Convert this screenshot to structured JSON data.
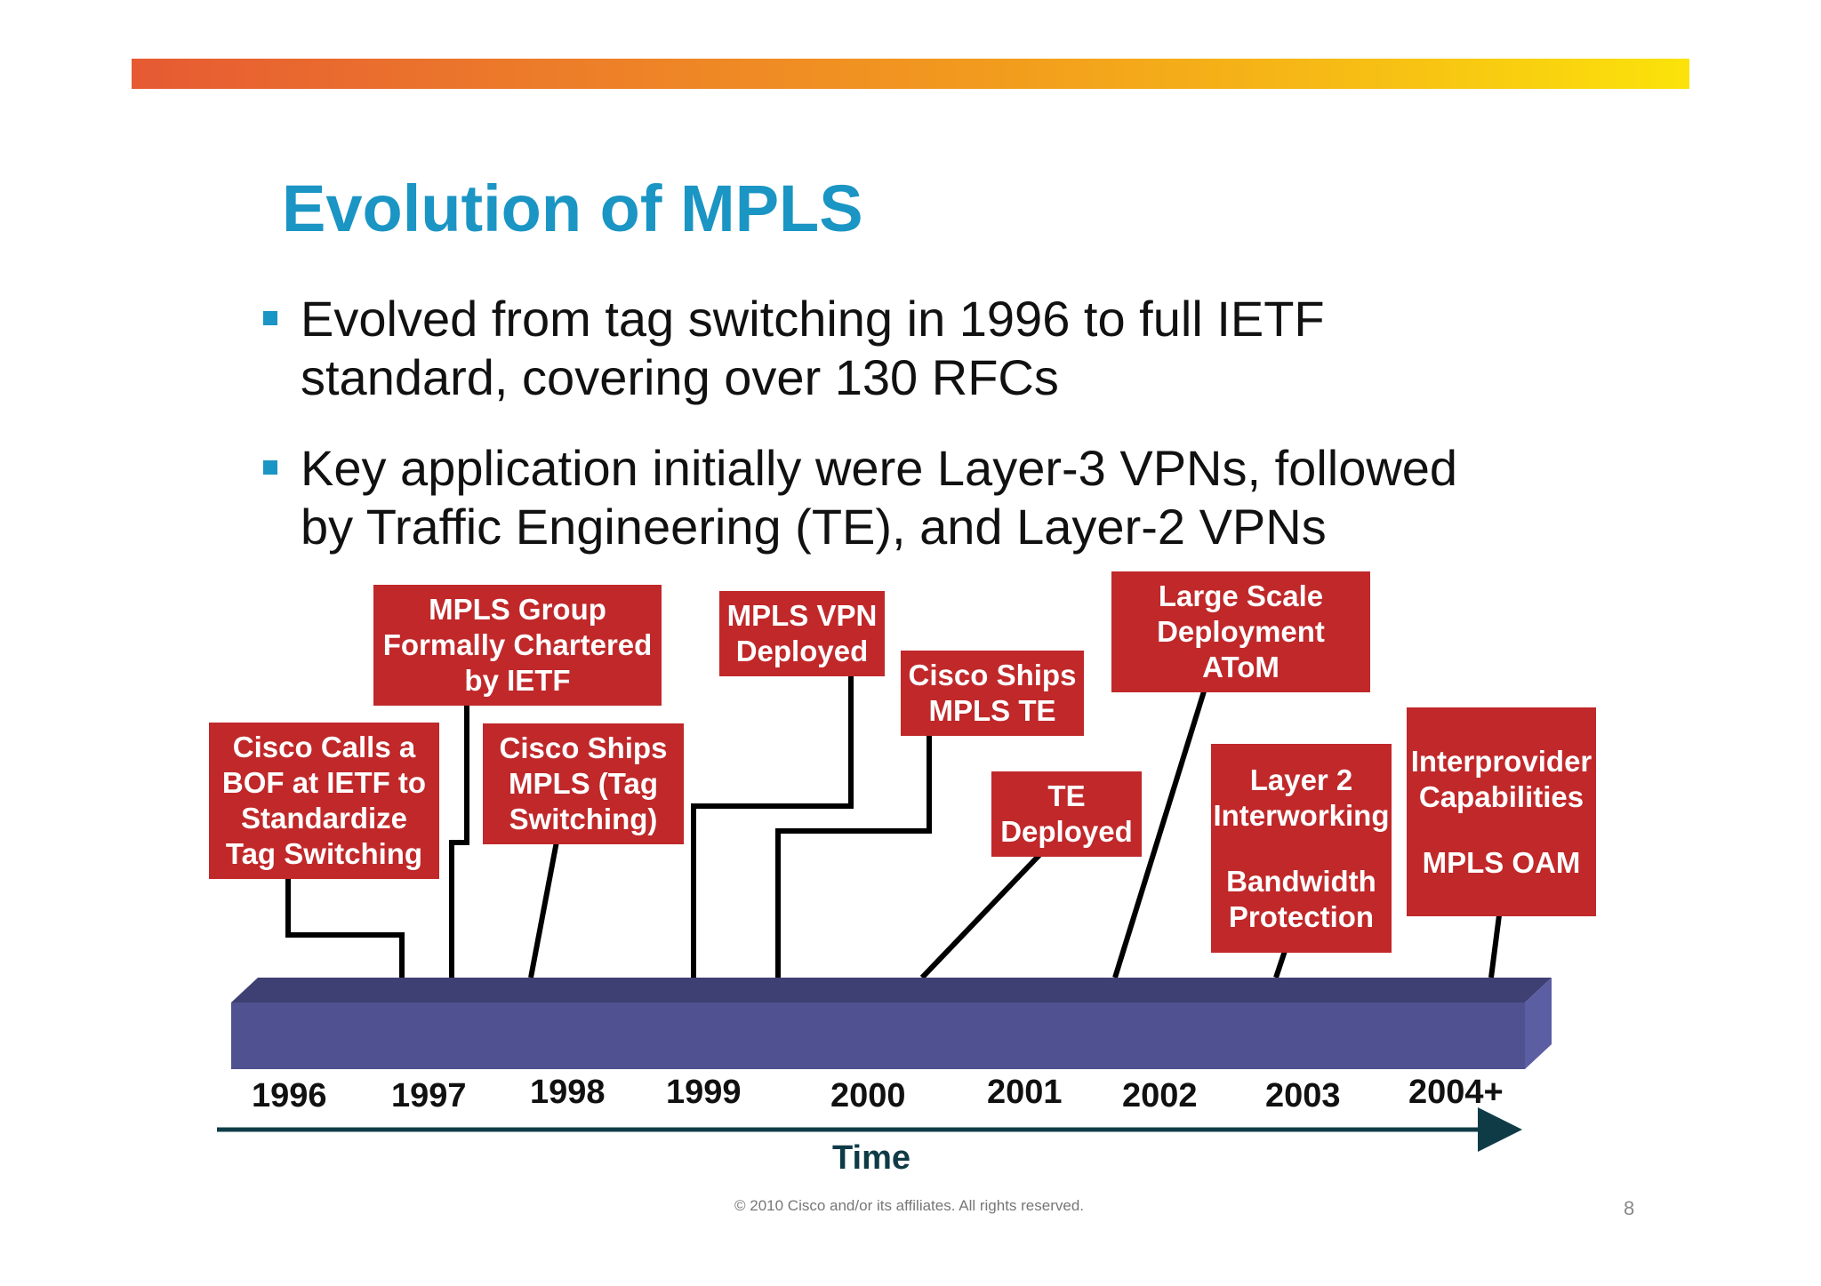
{
  "slide": {
    "title": "Evolution of MPLS",
    "bullets": [
      {
        "lines": [
          "Evolved from tag switching in 1996 to full IETF",
          "standard, covering over 130 RFCs"
        ]
      },
      {
        "lines": [
          "Key application initially were Layer-3 VPNs, followed",
          "by Traffic Engineering (TE), and Layer-2 VPNs"
        ]
      }
    ],
    "footer": "© 2010 Cisco and/or its affiliates. All rights reserved.",
    "page_number": "8"
  },
  "timeline": {
    "years": [
      "1996",
      "1997",
      "1998",
      "1999",
      "2000",
      "2001",
      "2002",
      "2003",
      "2004+"
    ],
    "axis_label": "Time",
    "colors": {
      "event_box": "#c0282a",
      "bar_front": "#4f5190",
      "bar_top": "#3e3f72",
      "bar_side": "#5c5ea3",
      "axis": "#0f3b46",
      "title": "#1a95c4"
    },
    "events": [
      {
        "lines": [
          "Cisco Calls a",
          "BOF at IETF to",
          "Standardize",
          "Tag Switching"
        ]
      },
      {
        "lines": [
          "MPLS Group",
          "Formally Chartered",
          "by IETF"
        ]
      },
      {
        "lines": [
          "Cisco Ships",
          "MPLS (Tag",
          "Switching)"
        ]
      },
      {
        "lines": [
          "MPLS VPN",
          "Deployed"
        ]
      },
      {
        "lines": [
          "Cisco Ships",
          "MPLS TE"
        ]
      },
      {
        "lines": [
          "TE",
          "Deployed"
        ]
      },
      {
        "lines": [
          "Large Scale",
          "Deployment",
          "AToM"
        ]
      },
      {
        "lines": [
          "Layer 2",
          "Interworking",
          "",
          "Bandwidth",
          "Protection"
        ]
      },
      {
        "lines": [
          "Interprovider",
          "Capabilities",
          "",
          "MPLS OAM"
        ]
      }
    ]
  }
}
